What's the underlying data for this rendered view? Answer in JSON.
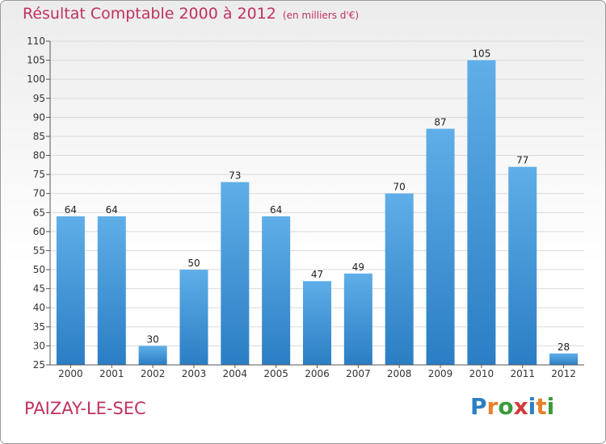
{
  "header": {
    "title": "Résultat Comptable 2000 à 2012",
    "subtitle": "(en milliers d'€)"
  },
  "footer": {
    "commune": "PAIZAY-LE-SEC",
    "logo_text": "Proxiti",
    "logo_colors": [
      "#2a7fc4",
      "#e8802a",
      "#3a9a3a",
      "#d23a3a",
      "#2a7fc4",
      "#e8802a",
      "#3a9a3a"
    ]
  },
  "colors": {
    "title": "#c0315d",
    "bar_top": "#5faee8",
    "bar_bottom": "#2b7ec4",
    "grid": "#d9d9d9",
    "axis": "#555555"
  },
  "chart_data": {
    "type": "bar",
    "categories": [
      "2000",
      "2001",
      "2002",
      "2003",
      "2004",
      "2005",
      "2006",
      "2007",
      "2008",
      "2009",
      "2010",
      "2011",
      "2012"
    ],
    "values": [
      64,
      64,
      30,
      50,
      73,
      64,
      47,
      49,
      70,
      87,
      105,
      77,
      28
    ],
    "title": "Résultat Comptable 2000 à 2012",
    "subtitle": "(en milliers d'€)",
    "xlabel": "",
    "ylabel": "",
    "ylim": [
      25,
      110
    ],
    "yticks": [
      25,
      30,
      35,
      40,
      45,
      50,
      55,
      60,
      65,
      70,
      75,
      80,
      85,
      90,
      95,
      100,
      105,
      110
    ],
    "grid": true,
    "data_labels": true
  }
}
